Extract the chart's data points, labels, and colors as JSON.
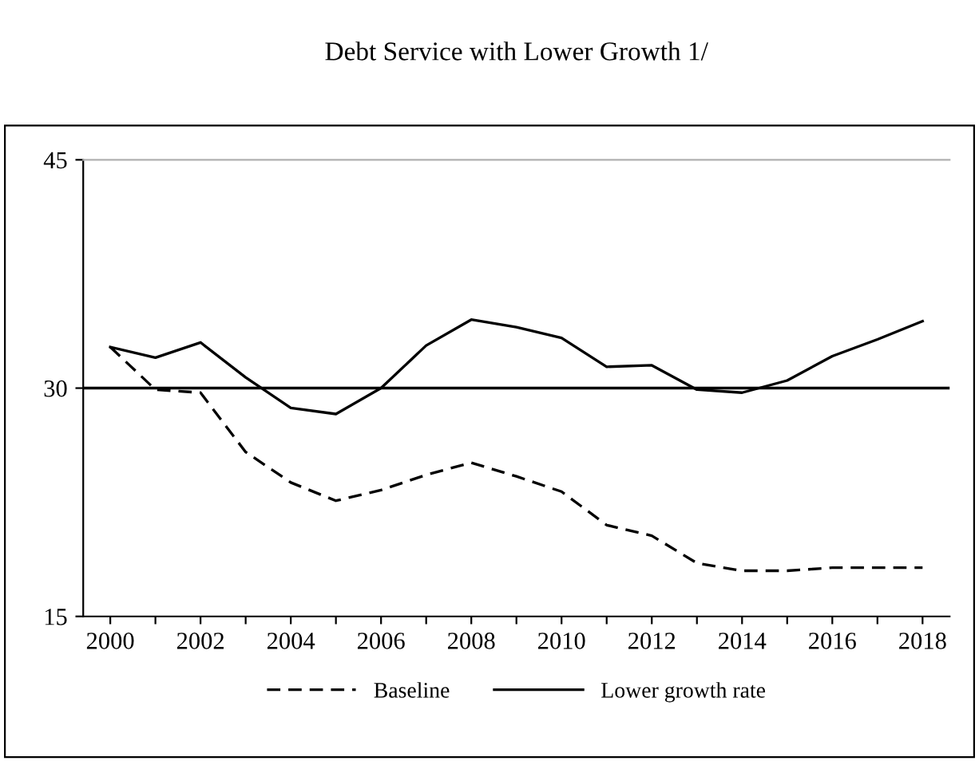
{
  "chart_data": {
    "type": "line",
    "title": "Debt Service with Lower Growth 1/",
    "categories": [
      "2000",
      null,
      "2002",
      null,
      "2004",
      null,
      "2006",
      null,
      "2008",
      null,
      "2010",
      null,
      "2012",
      null,
      "2014",
      null,
      "2016",
      null,
      "2018"
    ],
    "series": [
      {
        "name": "Baseline",
        "color": "#000000",
        "line_style": "dashed",
        "values": [
          32.7,
          29.9,
          29.7,
          25.8,
          23.8,
          22.6,
          23.3,
          24.3,
          25.1,
          24.2,
          23.2,
          21.0,
          20.3,
          18.5,
          18.0,
          18.0,
          18.2,
          18.2,
          18.2
        ]
      },
      {
        "name": "Lower growth rate",
        "color": "#000000",
        "line_style": "solid",
        "values": [
          32.7,
          32.0,
          33.0,
          30.7,
          28.7,
          28.3,
          30.0,
          32.8,
          34.5,
          34.0,
          33.3,
          31.4,
          31.5,
          29.9,
          29.7,
          30.5,
          32.1,
          33.2,
          34.4
        ]
      }
    ],
    "ylim": [
      15,
      45
    ],
    "yticks": [
      15,
      30,
      45
    ],
    "ref_lines": [
      {
        "axis": "y",
        "value": 30,
        "color": "#000000"
      }
    ],
    "grid": false,
    "legend": "bottom",
    "marker": "none"
  }
}
